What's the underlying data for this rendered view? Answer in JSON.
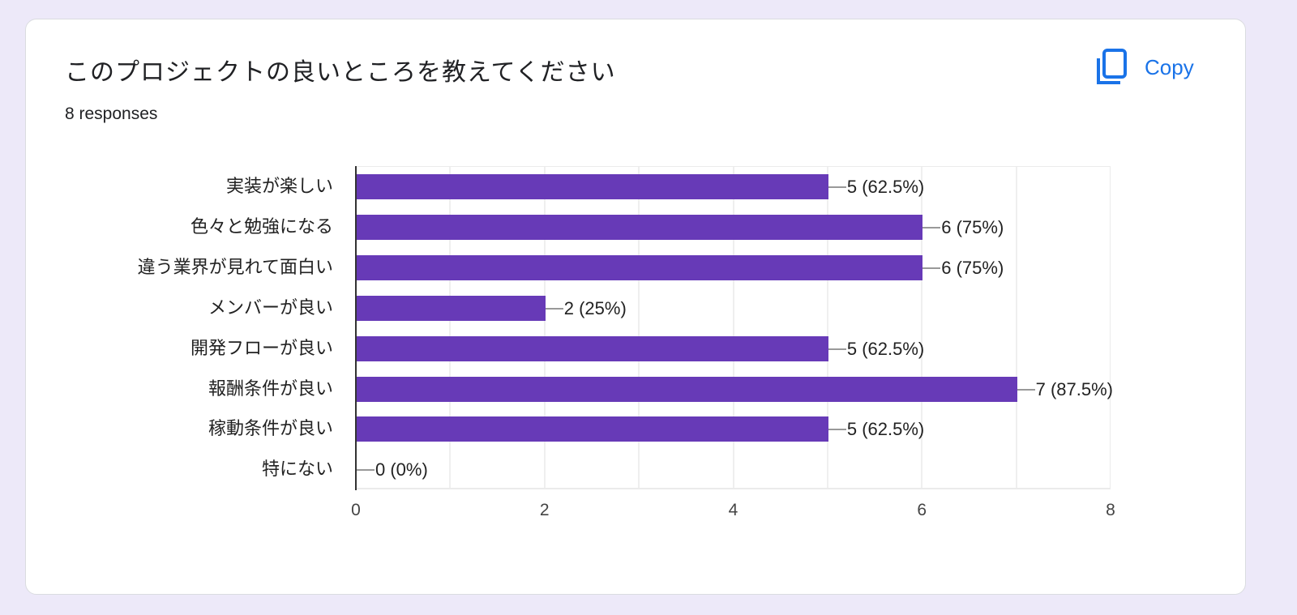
{
  "card": {
    "title": "このプロジェクトの良いところを教えてください",
    "responses": "8 responses",
    "copy_label": "Copy",
    "copy_icon": "copy-icon"
  },
  "colors": {
    "background": "#ede9f9",
    "bar": "#673ab7",
    "accent": "#1a73e8",
    "text": "#202124"
  },
  "chart_data": {
    "type": "bar",
    "orientation": "horizontal",
    "title": "このプロジェクトの良いところを教えてください",
    "subtitle": "8 responses",
    "categories": [
      "実装が楽しい",
      "色々と勉強になる",
      "違う業界が見れて面白い",
      "メンバーが良い",
      "開発フローが良い",
      "報酬条件が良い",
      "稼動条件が良い",
      "特にない"
    ],
    "values": [
      5,
      6,
      6,
      2,
      5,
      7,
      5,
      0
    ],
    "data_labels": [
      "5 (62.5%)",
      "6 (75%)",
      "6 (75%)",
      "2 (25%)",
      "5 (62.5%)",
      "7 (87.5%)",
      "5 (62.5%)",
      "0 (0%)"
    ],
    "percentages": [
      62.5,
      75,
      75,
      25,
      62.5,
      87.5,
      62.5,
      0
    ],
    "xlabel": "",
    "ylabel": "",
    "xlim": [
      0,
      8
    ],
    "x_ticks": [
      "0",
      "2",
      "4",
      "6",
      "8"
    ],
    "grid": true,
    "legend": "none"
  }
}
